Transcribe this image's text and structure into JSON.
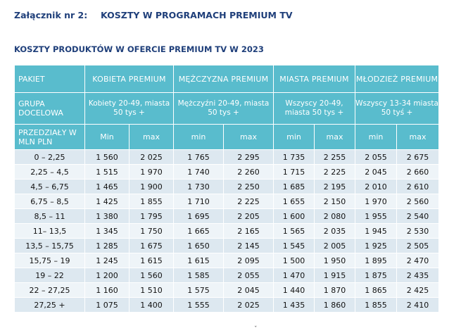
{
  "header": {
    "annex_label": "Załącznik nr 2:",
    "annex_title": "KOSZTY W PROGRAMACH PREMIUM TV"
  },
  "subtitle": "KOSZTY PRODUKTÓW W OFERCIE PREMIUM TV W 2023",
  "table": {
    "corner_packet": "PAKIET",
    "corner_target": "GRUPA DOCELOWA",
    "corner_range": "PRZEDZIAŁY W MLN PLN",
    "packages": [
      {
        "name": "KOBIETA PREMIUM",
        "target": "Kobiety 20-49, miasta 50 tys +",
        "col_min": "Min",
        "col_max": "max"
      },
      {
        "name": "MĘŻCZYZNA PREMIUM",
        "target": "Mężczyźni 20-49, miasta 50 tys +",
        "col_min": "min",
        "col_max": "max"
      },
      {
        "name": "MIASTA PREMIUM",
        "target": "Wszyscy 20-49, miasta 50 tys +",
        "col_min": "min",
        "col_max": "max"
      },
      {
        "name": "MŁODZIEŻ PREMIUM",
        "target": "Wszyscy 13-34 miasta 50 tyś +",
        "col_min": "min",
        "col_max": "max"
      }
    ],
    "rows": [
      {
        "range": "0 – 2,25",
        "values": [
          "1 560",
          "2 025",
          "1 765",
          "2 295",
          "1 735",
          "2 255",
          "2 055",
          "2 675"
        ]
      },
      {
        "range": "2,25 – 4,5",
        "values": [
          "1 515",
          "1 970",
          "1 740",
          "2 260",
          "1 715",
          "2 225",
          "2 045",
          "2 660"
        ]
      },
      {
        "range": "4,5 – 6,75",
        "values": [
          "1 465",
          "1 900",
          "1 730",
          "2 250",
          "1 685",
          "2 195",
          "2 010",
          "2 610"
        ]
      },
      {
        "range": "6,75 – 8,5",
        "values": [
          "1 425",
          "1 855",
          "1 710",
          "2 225",
          "1 655",
          "2 150",
          "1 970",
          "2 560"
        ]
      },
      {
        "range": "8,5 – 11",
        "values": [
          "1 380",
          "1 795",
          "1 695",
          "2 205",
          "1 600",
          "2 080",
          "1 955",
          "2 540"
        ]
      },
      {
        "range": "11– 13,5",
        "values": [
          "1 345",
          "1 750",
          "1 665",
          "2 165",
          "1 565",
          "2 035",
          "1 945",
          "2 530"
        ]
      },
      {
        "range": "13,5 – 15,75",
        "values": [
          "1 285",
          "1 675",
          "1 650",
          "2 145",
          "1 545",
          "2 005",
          "1 925",
          "2 505"
        ]
      },
      {
        "range": "15,75 – 19",
        "values": [
          "1 245",
          "1 615",
          "1 615",
          "2 095",
          "1 500",
          "1 950",
          "1 895",
          "2 470"
        ]
      },
      {
        "range": "19 – 22",
        "values": [
          "1 200",
          "1 560",
          "1 585",
          "2 055",
          "1 470",
          "1 915",
          "1 875",
          "2 435"
        ]
      },
      {
        "range": "22 – 27,25",
        "values": [
          "1 160",
          "1 510",
          "1 575",
          "2 045",
          "1 440",
          "1 870",
          "1 865",
          "2 425"
        ]
      },
      {
        "range": "27,25 +",
        "values": [
          "1 075",
          "1 400",
          "1 555",
          "2 025",
          "1 435",
          "1 860",
          "1 855",
          "2 410"
        ]
      }
    ]
  }
}
